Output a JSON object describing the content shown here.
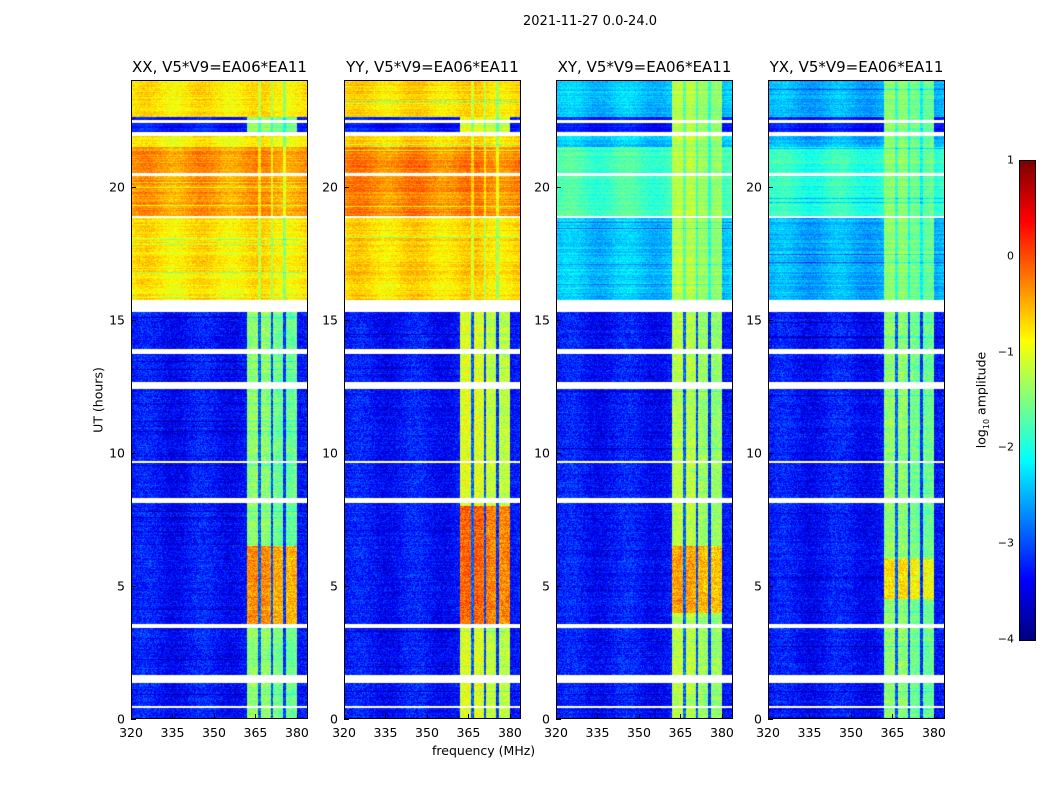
{
  "chart_data": {
    "type": "heatmap",
    "title": "2021-11-27 0.0-24.0",
    "xlabel": "frequency (MHz)",
    "ylabel": "UT (hours)",
    "xlim": [
      320,
      384
    ],
    "ylim": [
      0,
      24
    ],
    "xticks": [
      "320",
      "335",
      "350",
      "365",
      "380"
    ],
    "xtick_values": [
      320,
      335,
      350,
      365,
      380
    ],
    "yticks": [
      "0",
      "5",
      "10",
      "15",
      "20"
    ],
    "ytick_values": [
      0,
      5,
      10,
      15,
      20
    ],
    "colorbar": {
      "label_prefix": "log",
      "label_sub": "10",
      "label_suffix": " amplitude",
      "range": [
        -4,
        1
      ],
      "ticks": [
        "1",
        "0",
        "−1",
        "−2",
        "−3",
        "−4"
      ],
      "tick_values": [
        1,
        0,
        -1,
        -2,
        -3,
        -4
      ],
      "colormap": "jet"
    },
    "rfi_band_mhz": [
      362,
      380
    ],
    "rfi_gaps_mhz": [
      [
        366,
        367
      ],
      [
        370.5,
        371.2
      ],
      [
        375,
        376
      ]
    ],
    "flagged_ut_ranges": [
      [
        0.4,
        0.5
      ],
      [
        1.35,
        1.65
      ],
      [
        3.4,
        3.55
      ],
      [
        8.1,
        8.3
      ],
      [
        9.6,
        9.7
      ],
      [
        12.4,
        12.65
      ],
      [
        13.7,
        13.9
      ],
      [
        15.3,
        15.75
      ],
      [
        18.8,
        18.9
      ],
      [
        20.4,
        20.5
      ],
      [
        21.9,
        22.05
      ],
      [
        22.4,
        22.5
      ]
    ],
    "panels": [
      {
        "title": "XX, V5*V9=EA06*EA11",
        "low_bg": -3.3,
        "high_bg": -0.8,
        "high_peak_ut": [
          18.9,
          21.5
        ],
        "high_peak": -0.4,
        "rfi_level": -1.5,
        "rfi_peak_ut": [
          3.5,
          6.5
        ],
        "rfi_peak": -0.4
      },
      {
        "title": "YY, V5*V9=EA06*EA11",
        "low_bg": -3.3,
        "high_bg": -0.7,
        "high_peak_ut": [
          18.9,
          21.5
        ],
        "high_peak": -0.3,
        "rfi_level": -1.1,
        "rfi_peak_ut": [
          3.5,
          8
        ],
        "rfi_peak": -0.2
      },
      {
        "title": "XY, V5*V9=EA06*EA11",
        "low_bg": -3.3,
        "high_bg": -2.4,
        "high_peak_ut": [
          18.9,
          21.5
        ],
        "high_peak": -1.8,
        "rfi_level": -1.3,
        "rfi_peak_ut": [
          4,
          6.5
        ],
        "rfi_peak": -0.5
      },
      {
        "title": "YX, V5*V9=EA06*EA11",
        "low_bg": -3.3,
        "high_bg": -2.5,
        "high_peak_ut": [
          18.9,
          21.5
        ],
        "high_peak": -1.9,
        "rfi_level": -1.5,
        "rfi_peak_ut": [
          4.5,
          6
        ],
        "rfi_peak": -0.8
      }
    ]
  }
}
